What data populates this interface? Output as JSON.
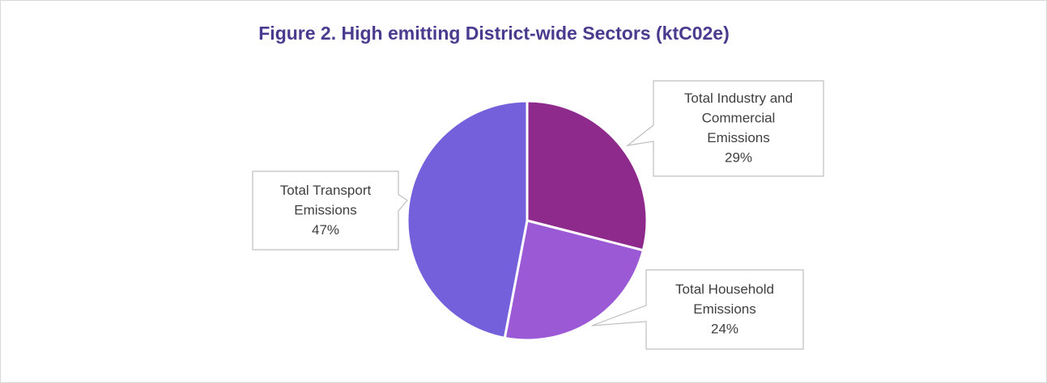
{
  "chart_data": {
    "type": "pie",
    "title": "Figure 2. High emitting District-wide Sectors (ktC02e)",
    "slices": [
      {
        "label_lines": [
          "Total Industry and",
          "Commercial",
          "Emissions"
        ],
        "value": 29,
        "value_text": "29%",
        "color": "#8e2a8c"
      },
      {
        "label_lines": [
          "Total Household",
          "Emissions"
        ],
        "value": 24,
        "value_text": "24%",
        "color": "#9b59d6"
      },
      {
        "label_lines": [
          "Total Transport",
          "Emissions"
        ],
        "value": 47,
        "value_text": "47%",
        "color": "#7460db"
      }
    ],
    "legend": "none",
    "data_labels": "callouts"
  }
}
